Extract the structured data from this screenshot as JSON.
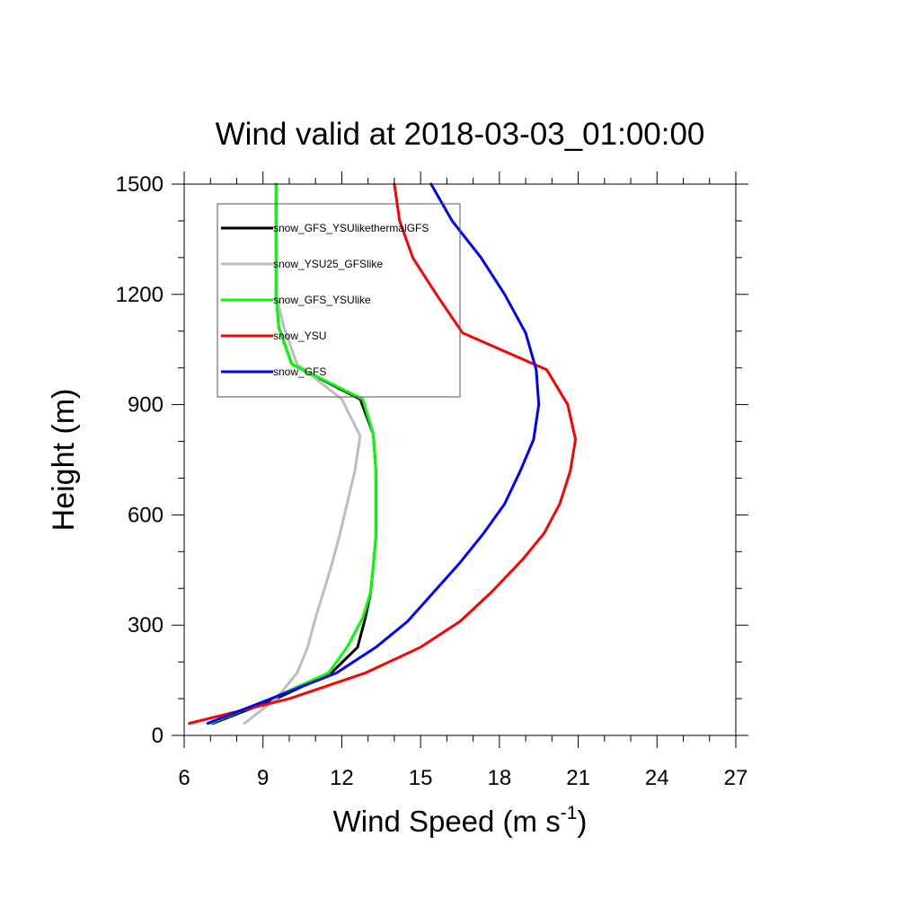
{
  "chart_data": {
    "type": "line",
    "title": "Wind valid at 2018-03-03_01:00:00",
    "xlabel": "Wind Speed (m s",
    "xlabel_superscript": "-1",
    "xlabel_close": ")",
    "ylabel": "Height (m)",
    "xlim": [
      6,
      27
    ],
    "ylim": [
      0,
      1500
    ],
    "x_ticks": [
      6,
      9,
      12,
      15,
      18,
      21,
      24,
      27
    ],
    "x_tick_labels": [
      "6",
      "9",
      "12",
      "15",
      "18",
      "21",
      "24",
      "27"
    ],
    "y_ticks": [
      0,
      300,
      600,
      900,
      1200,
      1500
    ],
    "y_tick_labels": [
      "0",
      "300",
      "600",
      "900",
      "1200",
      "1500"
    ],
    "x_minor_step": 1,
    "y_minor_step": 100,
    "grid": false,
    "legend_position": "top-left",
    "series": [
      {
        "name": "snow_GFS_YSUlikethermalGFS",
        "color": "#000000",
        "points": [
          [
            7.1,
            33
          ],
          [
            9.5,
            100
          ],
          [
            11.6,
            170
          ],
          [
            12.6,
            240
          ],
          [
            12.9,
            320
          ],
          [
            13.1,
            390
          ],
          [
            13.2,
            460
          ],
          [
            13.3,
            540
          ],
          [
            13.3,
            630
          ],
          [
            13.3,
            720
          ],
          [
            13.2,
            820
          ],
          [
            12.7,
            915
          ],
          [
            10.1,
            1010
          ],
          [
            9.6,
            1110
          ],
          [
            9.5,
            1200
          ],
          [
            9.5,
            1300
          ],
          [
            9.5,
            1400
          ],
          [
            9.5,
            1500
          ]
        ]
      },
      {
        "name": "snow_YSU25_GFSlike",
        "color": "#bdbdbd",
        "points": [
          [
            8.3,
            33
          ],
          [
            9.5,
            100
          ],
          [
            10.3,
            170
          ],
          [
            10.7,
            240
          ],
          [
            11.0,
            320
          ],
          [
            11.3,
            390
          ],
          [
            11.6,
            460
          ],
          [
            11.9,
            540
          ],
          [
            12.2,
            630
          ],
          [
            12.5,
            720
          ],
          [
            12.7,
            815
          ],
          [
            12.0,
            915
          ],
          [
            10.3,
            1010
          ],
          [
            9.8,
            1110
          ],
          [
            9.5,
            1200
          ],
          [
            9.5,
            1300
          ],
          [
            9.5,
            1400
          ],
          [
            9.5,
            1500
          ]
        ]
      },
      {
        "name": "snow_GFS_YSUlike",
        "color": "#00ff00",
        "points": [
          [
            7.0,
            33
          ],
          [
            9.3,
            100
          ],
          [
            11.5,
            170
          ],
          [
            12.2,
            240
          ],
          [
            12.8,
            320
          ],
          [
            13.1,
            390
          ],
          [
            13.2,
            460
          ],
          [
            13.3,
            540
          ],
          [
            13.3,
            630
          ],
          [
            13.3,
            720
          ],
          [
            13.2,
            820
          ],
          [
            12.8,
            915
          ],
          [
            10.1,
            1010
          ],
          [
            9.6,
            1110
          ],
          [
            9.5,
            1200
          ],
          [
            9.5,
            1300
          ],
          [
            9.5,
            1400
          ],
          [
            9.5,
            1500
          ]
        ]
      },
      {
        "name": "snow_YSU",
        "color": "#ff0000",
        "points": [
          [
            6.2,
            33
          ],
          [
            10.0,
            100
          ],
          [
            12.9,
            170
          ],
          [
            15.0,
            240
          ],
          [
            16.5,
            310
          ],
          [
            17.7,
            390
          ],
          [
            18.9,
            480
          ],
          [
            19.7,
            550
          ],
          [
            20.3,
            630
          ],
          [
            20.7,
            720
          ],
          [
            20.9,
            805
          ],
          [
            20.6,
            900
          ],
          [
            19.8,
            995
          ],
          [
            16.6,
            1095
          ],
          [
            15.6,
            1200
          ],
          [
            14.7,
            1300
          ],
          [
            14.2,
            1400
          ],
          [
            14.0,
            1500
          ]
        ]
      },
      {
        "name": "snow_GFS",
        "color": "#0000ff",
        "points": [
          [
            6.9,
            33
          ],
          [
            9.3,
            100
          ],
          [
            11.8,
            170
          ],
          [
            13.3,
            240
          ],
          [
            14.5,
            310
          ],
          [
            15.5,
            390
          ],
          [
            16.5,
            470
          ],
          [
            17.4,
            550
          ],
          [
            18.2,
            630
          ],
          [
            18.8,
            720
          ],
          [
            19.3,
            805
          ],
          [
            19.5,
            900
          ],
          [
            19.4,
            995
          ],
          [
            19.0,
            1095
          ],
          [
            18.2,
            1200
          ],
          [
            17.3,
            1300
          ],
          [
            16.2,
            1400
          ],
          [
            15.4,
            1500
          ]
        ]
      }
    ]
  }
}
